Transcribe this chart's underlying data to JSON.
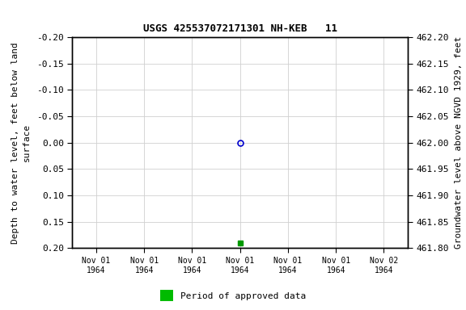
{
  "title": "USGS 425537072171301 NH-KEB   11",
  "ylabel_left_line1": "Depth to water level, feet below land",
  "ylabel_left_line2": "surface",
  "ylabel_right": "Groundwater level above NGVD 1929, feet",
  "ylim_left_bottom": 0.2,
  "ylim_left_top": -0.2,
  "ylim_right_bottom": 461.8,
  "ylim_right_top": 462.2,
  "yticks_left": [
    -0.2,
    -0.15,
    -0.1,
    -0.05,
    0.0,
    0.05,
    0.1,
    0.15,
    0.2
  ],
  "ytick_left_labels": [
    "-0.20",
    "-0.15",
    "-0.10",
    "-0.05",
    "0.00",
    "0.05",
    "0.10",
    "0.15",
    "0.20"
  ],
  "yticks_right": [
    462.2,
    462.15,
    462.1,
    462.05,
    462.0,
    461.95,
    461.9,
    461.85,
    461.8
  ],
  "ytick_right_labels": [
    "462.20",
    "462.15",
    "462.10",
    "462.05",
    "462.00",
    "461.95",
    "461.90",
    "461.85",
    "461.80"
  ],
  "point_blue_x": 3,
  "point_blue_y": 0.0,
  "point_green_x": 3,
  "point_green_y": 0.19,
  "xtick_positions": [
    0,
    1,
    2,
    3,
    4,
    5,
    6
  ],
  "xtick_labels": [
    "Nov 01\n1964",
    "Nov 01\n1964",
    "Nov 01\n1964",
    "Nov 01\n1964",
    "Nov 01\n1964",
    "Nov 01\n1964",
    "Nov 02\n1964"
  ],
  "legend_label": "Period of approved data",
  "legend_color": "#00bb00",
  "bg_color": "#ffffff",
  "grid_color": "#d0d0d0",
  "point_blue_color": "#0000cc",
  "point_green_color": "#009900",
  "title_fontsize": 9,
  "tick_fontsize": 8,
  "label_fontsize": 8,
  "legend_fontsize": 8,
  "xlim": [
    -0.5,
    6.5
  ]
}
